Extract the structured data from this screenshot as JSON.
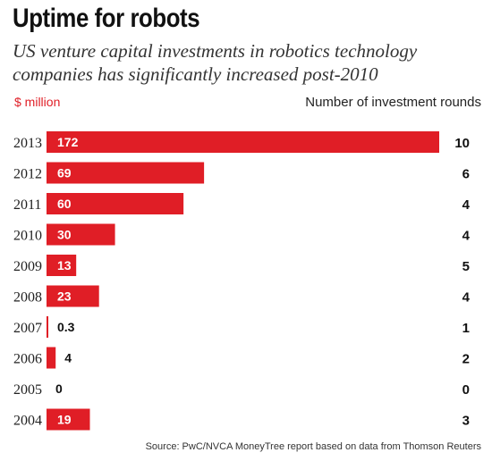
{
  "chart_data": {
    "type": "bar",
    "orientation": "horizontal",
    "title": "Uptime for robots",
    "subtitle": "US venture capital investments in robotics technology companies has significantly increased post-2010",
    "value_label": "$ million",
    "secondary_label": "Number of investment rounds",
    "categories": [
      "2013",
      "2012",
      "2011",
      "2010",
      "2009",
      "2008",
      "2007",
      "2006",
      "2005",
      "2004"
    ],
    "values": [
      172,
      69,
      60,
      30,
      13,
      23,
      0.3,
      4,
      0,
      19
    ],
    "value_labels": [
      "172",
      "69",
      "60",
      "30",
      "13",
      "23",
      "0.3",
      "4",
      "0",
      "19"
    ],
    "rounds": [
      "10",
      "6",
      "4",
      "4",
      "5",
      "4",
      "1",
      "2",
      "0",
      "3"
    ],
    "xlim": [
      0,
      172
    ],
    "bar_color": "#e01e26",
    "source": "Source: PwC/NVCA MoneyTree report based on data from Thomson Reuters"
  }
}
